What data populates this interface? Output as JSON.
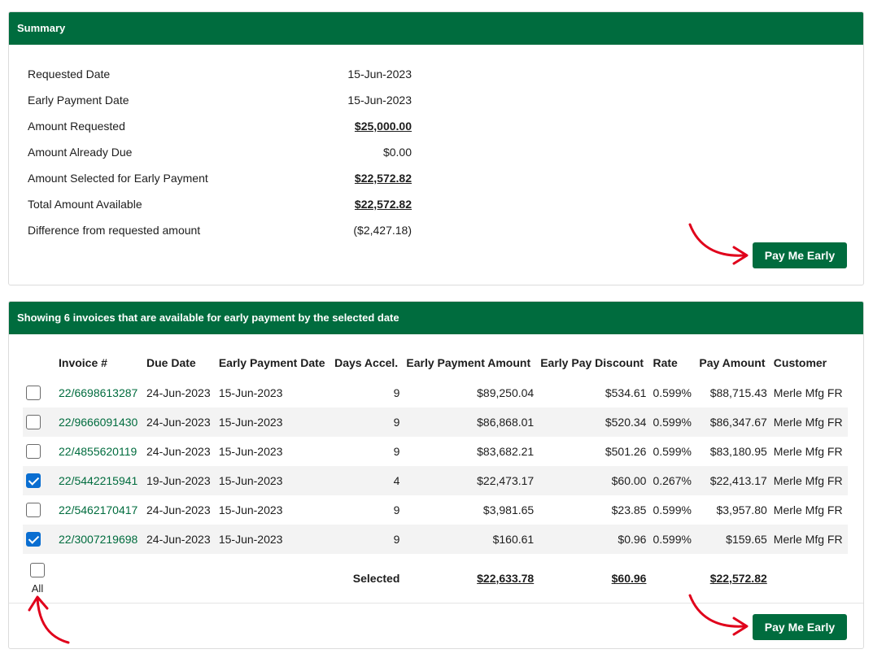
{
  "summary": {
    "title": "Summary",
    "rows": [
      {
        "label": "Requested Date",
        "value": "15-Jun-2023"
      },
      {
        "label": "Early Payment Date",
        "value": "15-Jun-2023"
      },
      {
        "label": "Amount Requested",
        "value": "$25,000.00"
      },
      {
        "label": "Amount Already Due",
        "value": "$0.00"
      },
      {
        "label": "Amount Selected for Early Payment",
        "value": "$22,572.82"
      },
      {
        "label": "Total Amount Available",
        "value": "$22,572.82"
      },
      {
        "label": "Difference from requested amount",
        "value": "($2,427.18)"
      }
    ],
    "button_label": "Pay Me Early"
  },
  "invoices": {
    "title": "Showing 6 invoices that are available for early payment by the selected date",
    "columns": [
      "Invoice #",
      "Due Date",
      "Early Payment Date",
      "Days Accel.",
      "Early Payment Amount",
      "Early Pay Discount",
      "Rate",
      "Pay Amount",
      "Customer"
    ],
    "rows": [
      {
        "checked": false,
        "invoice": "22/6698613287",
        "due": "24-Jun-2023",
        "early": "15-Jun-2023",
        "days": "9",
        "epa": "$89,250.04",
        "discount": "$534.61",
        "rate": "0.599%",
        "pay": "$88,715.43",
        "customer": "Merle Mfg FR"
      },
      {
        "checked": false,
        "invoice": "22/9666091430",
        "due": "24-Jun-2023",
        "early": "15-Jun-2023",
        "days": "9",
        "epa": "$86,868.01",
        "discount": "$520.34",
        "rate": "0.599%",
        "pay": "$86,347.67",
        "customer": "Merle Mfg FR"
      },
      {
        "checked": false,
        "invoice": "22/4855620119",
        "due": "24-Jun-2023",
        "early": "15-Jun-2023",
        "days": "9",
        "epa": "$83,682.21",
        "discount": "$501.26",
        "rate": "0.599%",
        "pay": "$83,180.95",
        "customer": "Merle Mfg FR"
      },
      {
        "checked": true,
        "invoice": "22/5442215941",
        "due": "19-Jun-2023",
        "early": "15-Jun-2023",
        "days": "4",
        "epa": "$22,473.17",
        "discount": "$60.00",
        "rate": "0.267%",
        "pay": "$22,413.17",
        "customer": "Merle Mfg FR"
      },
      {
        "checked": false,
        "invoice": "22/5462170417",
        "due": "24-Jun-2023",
        "early": "15-Jun-2023",
        "days": "9",
        "epa": "$3,981.65",
        "discount": "$23.85",
        "rate": "0.599%",
        "pay": "$3,957.80",
        "customer": "Merle Mfg FR"
      },
      {
        "checked": true,
        "invoice": "22/3007219698",
        "due": "24-Jun-2023",
        "early": "15-Jun-2023",
        "days": "9",
        "epa": "$160.61",
        "discount": "$0.96",
        "rate": "0.599%",
        "pay": "$159.65",
        "customer": "Merle Mfg FR"
      }
    ],
    "totals": {
      "label": "Selected",
      "all_label": "All",
      "epa": "$22,633.78",
      "discount": "$60.96",
      "pay": "$22,572.82"
    },
    "button_label": "Pay Me Early"
  },
  "colors": {
    "header_green": "#006c3e",
    "checkbox_blue": "#0a6ed1",
    "annotation_red": "#e0001b"
  }
}
